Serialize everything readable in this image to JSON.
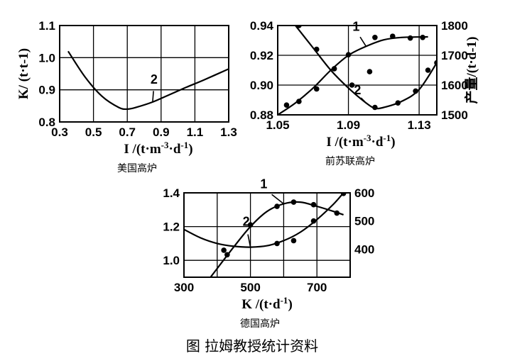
{
  "figure": {
    "caption": "图  拉姆教授统计资料"
  },
  "chart_data": [
    {
      "type": "line",
      "subtitle": "美国高炉",
      "xlabel": "I /(t·m⁻³·d⁻¹)",
      "ylabel": "K/ (t·t⁻¹)",
      "xlim": [
        0.3,
        1.3
      ],
      "ylim": [
        0.8,
        1.1
      ],
      "x_ticks": [
        "0.3",
        "0.5",
        "0.7",
        "0.9",
        "1.1",
        "1.3"
      ],
      "y_ticks": [
        "0.8",
        "0.9",
        "1.0",
        "1.1"
      ],
      "grid": true,
      "series": [
        {
          "name": "2",
          "x": [
            0.35,
            0.45,
            0.55,
            0.65,
            0.7,
            0.75,
            0.85,
            0.95,
            1.05,
            1.15,
            1.3
          ],
          "y": [
            1.02,
            0.94,
            0.88,
            0.845,
            0.84,
            0.845,
            0.862,
            0.885,
            0.908,
            0.93,
            0.965
          ]
        }
      ]
    },
    {
      "type": "line",
      "subtitle": "前苏联高炉",
      "xlabel": "I /(t·m⁻³·d⁻¹)",
      "ylabel": "",
      "y2label": "产量/(t·d⁻¹)",
      "xlim": [
        1.05,
        1.14
      ],
      "ylim": [
        0.88,
        0.94
      ],
      "y2lim": [
        1500,
        1800
      ],
      "x_ticks": [
        "1.05",
        "1.09",
        "1.13"
      ],
      "y_ticks": [
        "0.88",
        "0.90",
        "0.92",
        "0.94"
      ],
      "y2_ticks": [
        "1500",
        "1600",
        "1700",
        "1800"
      ],
      "grid": true,
      "series": [
        {
          "name": "1",
          "axis": "right",
          "x": [
            1.05,
            1.06,
            1.07,
            1.08,
            1.09,
            1.1,
            1.11,
            1.12,
            1.135
          ],
          "y": [
            1500,
            1540,
            1590,
            1650,
            1700,
            1730,
            1752,
            1760,
            1762
          ]
        },
        {
          "name": "2",
          "axis": "left",
          "x": [
            1.06,
            1.07,
            1.08,
            1.09,
            1.1,
            1.105,
            1.11,
            1.12,
            1.13,
            1.14
          ],
          "y": [
            0.94,
            0.925,
            0.91,
            0.898,
            0.888,
            0.8845,
            0.885,
            0.889,
            0.897,
            0.915
          ]
        },
        {
          "name": "points-1",
          "axis": "right",
          "type": "scatter",
          "x": [
            1.055,
            1.062,
            1.072,
            1.09,
            1.102
          ],
          "y": [
            1533,
            1545,
            1587,
            1702,
            1645
          ]
        },
        {
          "name": "points-2",
          "axis": "left",
          "type": "scatter",
          "x": [
            1.062,
            1.072,
            1.082,
            1.092,
            1.105,
            1.118,
            1.128,
            1.135,
            1.14
          ],
          "y": [
            0.94,
            0.924,
            0.911,
            0.9,
            0.885,
            0.888,
            0.896,
            0.91,
            0.915
          ]
        },
        {
          "name": "points-1-upper",
          "axis": "right",
          "type": "scatter",
          "x": [
            1.105,
            1.115,
            1.125,
            1.132
          ],
          "y": [
            1760,
            1764,
            1758,
            1760
          ]
        }
      ]
    },
    {
      "type": "line",
      "subtitle": "德国高炉",
      "xlabel": "K /(t·d⁻¹)",
      "ylabel": "",
      "xlim": [
        300,
        800
      ],
      "ylim": [
        0.9,
        1.4
      ],
      "y2lim": [
        300,
        600
      ],
      "x_ticks": [
        "300",
        "500",
        "700"
      ],
      "y_ticks": [
        "1.0",
        "1.2",
        "1.4"
      ],
      "y2_ticks": [
        "400",
        "500",
        "600"
      ],
      "grid": true,
      "series": [
        {
          "name": "1",
          "axis": "left",
          "x": [
            380,
            450,
            500,
            550,
            600,
            650,
            700,
            750,
            780
          ],
          "y": [
            0.9,
            1.08,
            1.2,
            1.29,
            1.335,
            1.345,
            1.32,
            1.29,
            1.27
          ]
        },
        {
          "name": "2",
          "axis": "right",
          "x": [
            300,
            350,
            400,
            450,
            500,
            550,
            600,
            650,
            700,
            750,
            780
          ],
          "y": [
            470,
            440,
            420,
            410,
            407,
            412,
            430,
            460,
            505,
            560,
            600
          ]
        },
        {
          "name": "points-1",
          "axis": "left",
          "type": "scatter",
          "x": [
            420,
            500,
            580,
            630,
            690,
            760
          ],
          "y": [
            1.06,
            1.21,
            1.32,
            1.345,
            1.33,
            1.28
          ]
        },
        {
          "name": "points-2",
          "axis": "right",
          "type": "scatter",
          "x": [
            430,
            580,
            630,
            690,
            780
          ],
          "y": [
            380,
            420,
            430,
            500,
            598
          ]
        }
      ]
    }
  ]
}
